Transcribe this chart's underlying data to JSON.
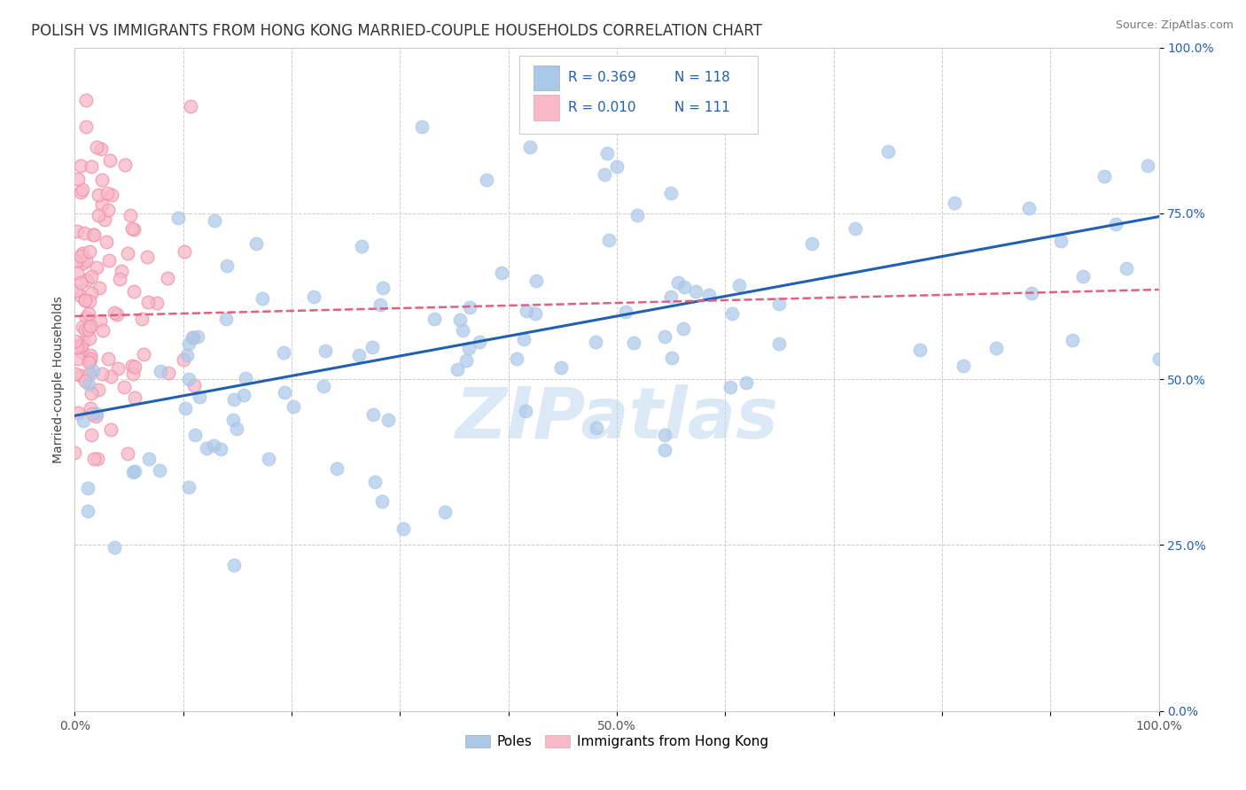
{
  "title": "POLISH VS IMMIGRANTS FROM HONG KONG MARRIED-COUPLE HOUSEHOLDS CORRELATION CHART",
  "source": "Source: ZipAtlas.com",
  "ylabel": "Married-couple Households",
  "xlim": [
    0,
    1.0
  ],
  "ylim": [
    0,
    1.0
  ],
  "xticks": [
    0.0,
    0.1,
    0.2,
    0.3,
    0.4,
    0.5,
    0.6,
    0.7,
    0.8,
    0.9,
    1.0
  ],
  "yticks": [
    0.0,
    0.25,
    0.5,
    0.75,
    1.0
  ],
  "xticklabels": [
    "0.0%",
    "",
    "",
    "",
    "",
    "50.0%",
    "",
    "",
    "",
    "",
    "100.0%"
  ],
  "yticklabels": [
    "0.0%",
    "25.0%",
    "50.0%",
    "75.0%",
    "100.0%"
  ],
  "blue_color": "#aac8e8",
  "blue_edge_color": "#aac8e8",
  "blue_line_color": "#2060b0",
  "pink_color": "#f8b8c8",
  "pink_edge_color": "#f090a8",
  "pink_line_color": "#e06080",
  "watermark": "ZIPatlas",
  "watermark_color": "#b8d4f0",
  "blue_slope": 0.3,
  "blue_intercept": 0.445,
  "pink_slope": 0.04,
  "pink_intercept": 0.595,
  "title_fontsize": 12,
  "axis_label_fontsize": 10,
  "tick_fontsize": 10,
  "background_color": "#ffffff",
  "grid_color": "#cccccc",
  "ytick_color": "#2060b0"
}
